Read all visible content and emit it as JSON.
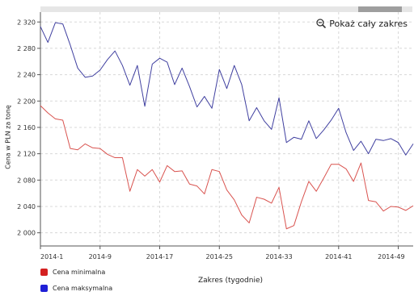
{
  "chart_data": {
    "type": "line",
    "title": "",
    "xlabel": "Zakres (tygodnie)",
    "ylabel": "Cena w PLN za tonę",
    "ylim": [
      1980,
      2335
    ],
    "y_ticks": [
      2000,
      2040,
      2080,
      2120,
      2160,
      2200,
      2240,
      2280,
      2320
    ],
    "y_tick_labels": [
      "2 000",
      "2 040",
      "2 080",
      "2 120",
      "2 160",
      "2 200",
      "2 240",
      "2 280",
      "2 320"
    ],
    "x_ticks": [
      "2014-1",
      "2014-9",
      "2014-17",
      "2014-25",
      "2014-33",
      "2014-41",
      "2014-49"
    ],
    "x": [
      "2014-1",
      "2014-2",
      "2014-3",
      "2014-4",
      "2014-5",
      "2014-6",
      "2014-7",
      "2014-8",
      "2014-9",
      "2014-10",
      "2014-11",
      "2014-12",
      "2014-13",
      "2014-14",
      "2014-15",
      "2014-16",
      "2014-17",
      "2014-18",
      "2014-19",
      "2014-20",
      "2014-21",
      "2014-22",
      "2014-23",
      "2014-24",
      "2014-25",
      "2014-26",
      "2014-27",
      "2014-28",
      "2014-29",
      "2014-30",
      "2014-31",
      "2014-32",
      "2014-33",
      "2014-34",
      "2014-35",
      "2014-36",
      "2014-37",
      "2014-38",
      "2014-39",
      "2014-40",
      "2014-41",
      "2014-42",
      "2014-43",
      "2014-44",
      "2014-45",
      "2014-46",
      "2014-47",
      "2014-48",
      "2014-49",
      "2014-50",
      "2014-51"
    ],
    "grid": true,
    "legend_position": "bottom-left",
    "series": [
      {
        "name": "Cena minimalna",
        "color": "#d9534f",
        "values": [
          2193,
          2182,
          2173,
          2171,
          2128,
          2126,
          2135,
          2129,
          2128,
          2119,
          2114,
          2114,
          2063,
          2096,
          2086,
          2096,
          2077,
          2102,
          2093,
          2094,
          2074,
          2071,
          2059,
          2096,
          2093,
          2065,
          2050,
          2027,
          2015,
          2054,
          2051,
          2045,
          2069,
          2006,
          2011,
          2047,
          2078,
          2063,
          2083,
          2104,
          2104,
          2097,
          2078,
          2106,
          2049,
          2047,
          2033,
          2040,
          2039,
          2034,
          2041
        ]
      },
      {
        "name": "Cena maksymalna",
        "color": "#4040a0",
        "values": [
          2313,
          2289,
          2319,
          2317,
          2285,
          2250,
          2236,
          2238,
          2247,
          2263,
          2276,
          2254,
          2224,
          2254,
          2192,
          2256,
          2265,
          2259,
          2225,
          2250,
          2222,
          2191,
          2207,
          2189,
          2248,
          2219,
          2254,
          2225,
          2170,
          2190,
          2170,
          2157,
          2205,
          2137,
          2145,
          2142,
          2170,
          2143,
          2156,
          2171,
          2189,
          2152,
          2125,
          2139,
          2120,
          2142,
          2140,
          2143,
          2137,
          2118,
          2135
        ]
      }
    ]
  },
  "ui": {
    "zoom_reset_label": "Pokaż cały zakres"
  }
}
